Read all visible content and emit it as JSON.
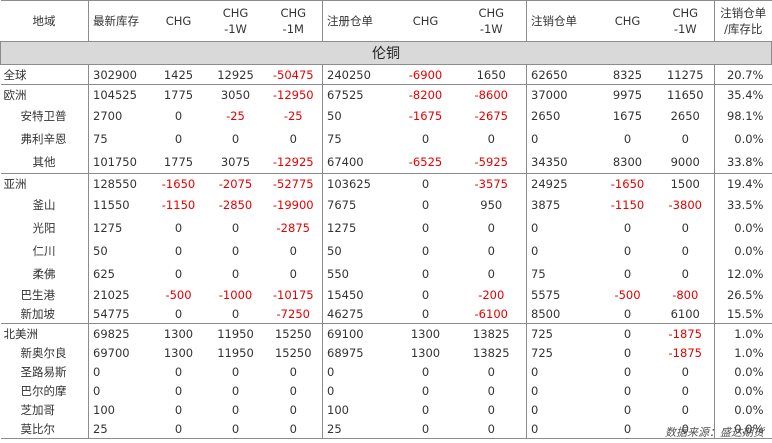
{
  "title": "伦铜",
  "headers": [
    "地域",
    "最新库存",
    "CHG",
    "CHG\n-1W",
    "CHG\n-1M",
    "注册仓单",
    "CHG",
    "CHG\n-1W",
    "注销仓单",
    "CHG",
    "CHG\n-1W",
    "注销仓单\n/库存比"
  ],
  "rows": [
    {
      "name": "全球",
      "level": 0,
      "sep": true,
      "cells": [
        "302900",
        "1425",
        "12925",
        "-50475",
        "240250",
        "-6900",
        "1650",
        "62650",
        "8325",
        "11275",
        "20.7%"
      ]
    },
    {
      "name": "欧洲",
      "level": 0,
      "sep": true,
      "cells": [
        "104525",
        "1775",
        "3050",
        "-12950",
        "67525",
        "-8200",
        "-8600",
        "37000",
        "9975",
        "11650",
        "35.4%"
      ]
    },
    {
      "name": "安特卫普",
      "level": 1,
      "sep": false,
      "cells": [
        "2700",
        "0",
        "-25",
        "-25",
        "50",
        "-1675",
        "-2675",
        "2650",
        "1675",
        "2650",
        "98.1%"
      ]
    },
    {
      "name": "弗利辛恩",
      "level": 1,
      "sep": false,
      "cells": [
        "75",
        "0",
        "0",
        "0",
        "75",
        "0",
        "0",
        "0",
        "0",
        "0",
        "0.0%"
      ]
    },
    {
      "name": "其他",
      "level": 2,
      "sep": false,
      "cells": [
        "101750",
        "1775",
        "3075",
        "-12925",
        "67400",
        "-6525",
        "-5925",
        "34350",
        "8300",
        "9000",
        "33.8%"
      ]
    },
    {
      "name": "亚洲",
      "level": 0,
      "sep": true,
      "cells": [
        "128550",
        "-1650",
        "-2075",
        "-52775",
        "103625",
        "0",
        "-3575",
        "24925",
        "-1650",
        "1500",
        "19.4%"
      ]
    },
    {
      "name": "釜山",
      "level": 2,
      "sep": false,
      "cells": [
        "11550",
        "-1150",
        "-2850",
        "-19900",
        "7675",
        "0",
        "950",
        "3875",
        "-1150",
        "-3800",
        "33.5%"
      ]
    },
    {
      "name": "光阳",
      "level": 2,
      "sep": false,
      "cells": [
        "1275",
        "0",
        "0",
        "-2875",
        "1275",
        "0",
        "0",
        "0",
        "0",
        "0",
        "0.0%"
      ]
    },
    {
      "name": "仁川",
      "level": 2,
      "sep": false,
      "cells": [
        "50",
        "0",
        "0",
        "0",
        "50",
        "0",
        "0",
        "0",
        "0",
        "0",
        "0.0%"
      ]
    },
    {
      "name": "柔佛",
      "level": 2,
      "sep": false,
      "cells": [
        "625",
        "0",
        "0",
        "0",
        "550",
        "0",
        "0",
        "75",
        "0",
        "0",
        "12.0%"
      ]
    },
    {
      "name": "巴生港",
      "level": 1,
      "sep": false,
      "cells": [
        "21025",
        "-500",
        "-1000",
        "-10175",
        "15450",
        "0",
        "-200",
        "5575",
        "-500",
        "-800",
        "26.5%"
      ]
    },
    {
      "name": "新加坡",
      "level": 1,
      "sep": false,
      "cells": [
        "54775",
        "0",
        "0",
        "-7250",
        "46275",
        "0",
        "-6100",
        "8500",
        "0",
        "6100",
        "15.5%"
      ]
    },
    {
      "name": "北美洲",
      "level": 0,
      "sep": true,
      "cells": [
        "69825",
        "1300",
        "11950",
        "15250",
        "69100",
        "1300",
        "13825",
        "725",
        "0",
        "-1875",
        "1.0%"
      ]
    },
    {
      "name": "新奥尔良",
      "level": 1,
      "sep": false,
      "cells": [
        "69700",
        "1300",
        "11950",
        "15250",
        "68975",
        "1300",
        "13825",
        "725",
        "0",
        "-1875",
        "1.0%"
      ]
    },
    {
      "name": "圣路易斯",
      "level": 1,
      "sep": false,
      "cells": [
        "0",
        "0",
        "0",
        "0",
        "0",
        "0",
        "0",
        "0",
        "0",
        "0",
        "0.0%"
      ]
    },
    {
      "name": "巴尔的摩",
      "level": 1,
      "sep": false,
      "cells": [
        "0",
        "0",
        "0",
        "0",
        "0",
        "0",
        "0",
        "0",
        "0",
        "0",
        "0.0%"
      ]
    },
    {
      "name": "芝加哥",
      "level": 1,
      "sep": false,
      "cells": [
        "100",
        "0",
        "0",
        "0",
        "100",
        "0",
        "0",
        "0",
        "0",
        "0",
        "0.0%"
      ]
    },
    {
      "name": "莫比尔",
      "level": 1,
      "sep": false,
      "cells": [
        "25",
        "0",
        "0",
        "0",
        "25",
        "0",
        "0",
        "0",
        "0",
        "0",
        "0.0%"
      ]
    }
  ],
  "source": "数据来源：盛达期货",
  "colors": {
    "negative": "#e60000",
    "header_bg": "#d9d9d9",
    "border": "#8c8c8c"
  }
}
